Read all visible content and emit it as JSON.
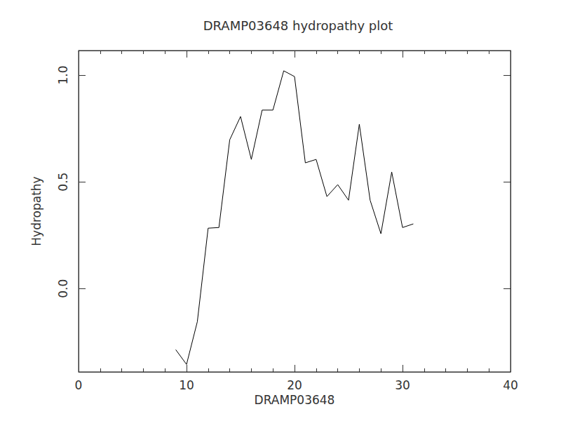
{
  "chart_data": {
    "type": "line",
    "title": "DRAMP03648 hydropathy plot",
    "x_label": "DRAMP03648",
    "y_label": "Hydropathy",
    "x": [
      9,
      10,
      11,
      12,
      13,
      14,
      15,
      16,
      17,
      18,
      19,
      20,
      21,
      22,
      23,
      24,
      25,
      26,
      27,
      28,
      29,
      30,
      31
    ],
    "values": [
      -0.286,
      -0.355,
      -0.155,
      0.283,
      0.286,
      0.697,
      0.806,
      0.605,
      0.836,
      0.836,
      1.02,
      0.993,
      0.589,
      0.605,
      0.431,
      0.487,
      0.414,
      0.77,
      0.414,
      0.257,
      0.546,
      0.286,
      0.303
    ],
    "color": "#000000",
    "xlim": [
      0,
      40
    ],
    "xticks": [
      0,
      10,
      20,
      30,
      40
    ],
    "ylim": [
      -0.39,
      1.115
    ],
    "yticks": [
      {
        "value": 0,
        "label": "0.0"
      },
      0.5,
      {
        "value": 1,
        "label": "1.0"
      }
    ],
    "grid": false
  }
}
